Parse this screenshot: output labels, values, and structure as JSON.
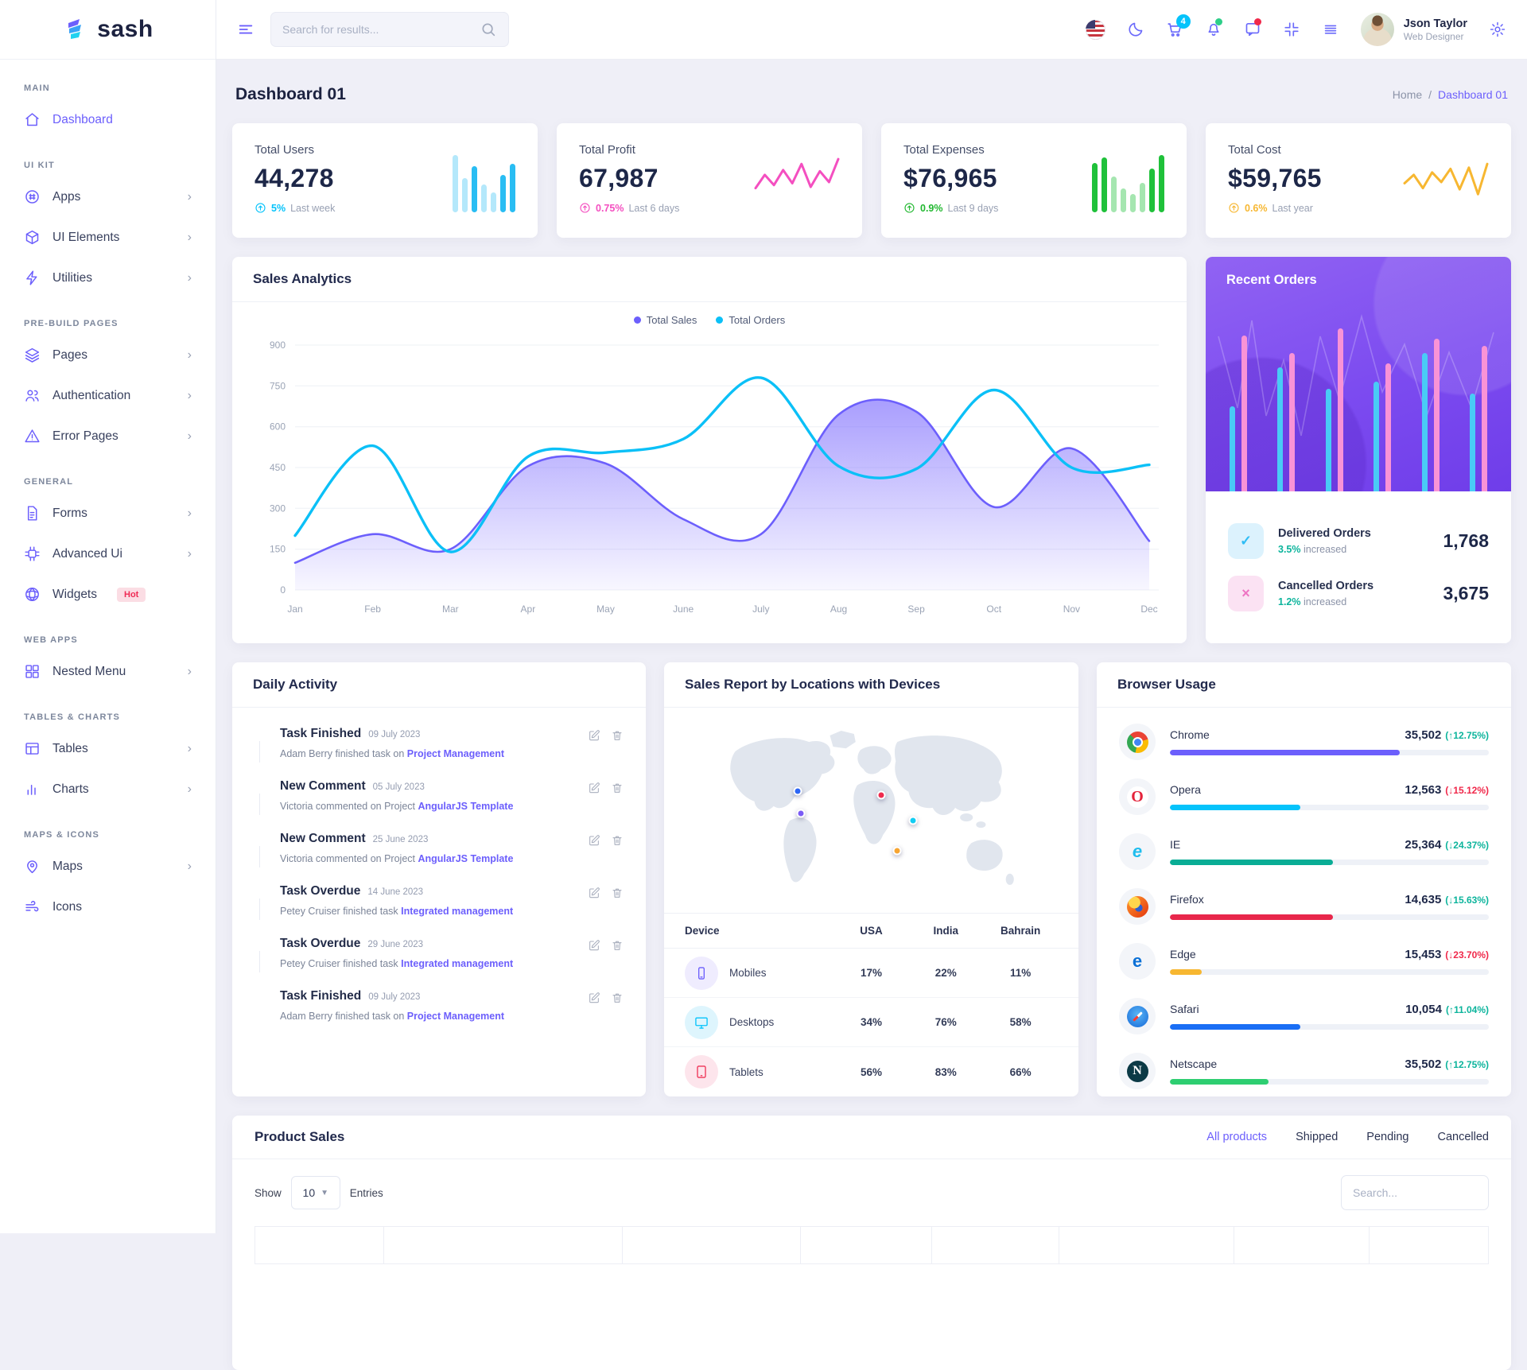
{
  "app": {
    "name": "sash"
  },
  "header": {
    "search_placeholder": "Search for results...",
    "cart_badge": "4",
    "user": {
      "name": "Json Taylor",
      "role": "Web Designer"
    }
  },
  "page": {
    "title": "Dashboard 01",
    "breadcrumb": {
      "home": "Home",
      "separator": "/",
      "current": "Dashboard 01"
    }
  },
  "sidebar": {
    "sections": [
      {
        "heading": "MAIN",
        "items": [
          {
            "label": "Dashboard",
            "icon": "home",
            "active": true,
            "chevron": false
          }
        ]
      },
      {
        "heading": "UI KIT",
        "items": [
          {
            "label": "Apps",
            "icon": "apps",
            "chevron": true
          },
          {
            "label": "UI Elements",
            "icon": "box",
            "chevron": true
          },
          {
            "label": "Utilities",
            "icon": "bolt",
            "chevron": true
          }
        ]
      },
      {
        "heading": "PRE-BUILD PAGES",
        "items": [
          {
            "label": "Pages",
            "icon": "layers",
            "chevron": true
          },
          {
            "label": "Authentication",
            "icon": "users",
            "chevron": true
          },
          {
            "label": "Error Pages",
            "icon": "alert",
            "chevron": true
          }
        ]
      },
      {
        "heading": "GENERAL",
        "items": [
          {
            "label": "Forms",
            "icon": "file",
            "chevron": true
          },
          {
            "label": "Advanced Ui",
            "icon": "chip",
            "chevron": true
          },
          {
            "label": "Widgets",
            "icon": "globe",
            "chevron": false,
            "badge": "Hot"
          }
        ]
      },
      {
        "heading": "WEB APPS",
        "items": [
          {
            "label": "Nested Menu",
            "icon": "grid",
            "chevron": true
          }
        ]
      },
      {
        "heading": "TABLES & CHARTS",
        "items": [
          {
            "label": "Tables",
            "icon": "table",
            "chevron": true
          },
          {
            "label": "Charts",
            "icon": "chart",
            "chevron": true
          }
        ]
      },
      {
        "heading": "MAPS & ICONS",
        "items": [
          {
            "label": "Maps",
            "icon": "pin",
            "chevron": true
          },
          {
            "label": "Icons",
            "icon": "wind",
            "chevron": false
          }
        ]
      }
    ]
  },
  "stats": [
    {
      "title": "Total Users",
      "value": "44,278",
      "pct": "5%",
      "period": "Last week",
      "color": "#05c3fb",
      "spark": {
        "type": "bars",
        "values": [
          92,
          55,
          75,
          45,
          32,
          60,
          78
        ],
        "kinds": [
          "light",
          "light",
          "dark",
          "light",
          "light",
          "dark",
          "dark"
        ],
        "dark": "#29bdf3",
        "light": "rgba(41,189,243,0.35)"
      }
    },
    {
      "title": "Total Profit",
      "value": "67,987",
      "pct": "0.75%",
      "period": "Last 6 days",
      "color": "#f44fc0",
      "spark": {
        "type": "line",
        "values": [
          40,
          62,
          45,
          70,
          48,
          80,
          42,
          68,
          50,
          88
        ],
        "stroke": "#f44fc0"
      }
    },
    {
      "title": "Total Expenses",
      "value": "$76,965",
      "pct": "0.9%",
      "period": "Last 9 days",
      "color": "#21b830",
      "spark": {
        "type": "bars",
        "values": [
          80,
          88,
          58,
          38,
          30,
          48,
          70,
          92
        ],
        "kinds": [
          "dark",
          "dark",
          "light",
          "light",
          "light",
          "light",
          "dark",
          "dark"
        ],
        "dark": "#1fc13a",
        "light": "rgba(31,193,58,0.4)"
      }
    },
    {
      "title": "Total Cost",
      "value": "$59,765",
      "pct": "0.6%",
      "period": "Last year",
      "color": "#f7b731",
      "spark": {
        "type": "line",
        "values": [
          48,
          62,
          40,
          66,
          50,
          72,
          38,
          74,
          30,
          80
        ],
        "stroke": "#f7b731"
      }
    }
  ],
  "sales_analytics": {
    "title": "Sales Analytics",
    "chart_data": {
      "type": "area",
      "categories": [
        "Jan",
        "Feb",
        "Mar",
        "Apr",
        "May",
        "June",
        "July",
        "Aug",
        "Sep",
        "Oct",
        "Nov",
        "Dec"
      ],
      "series": [
        {
          "name": "Total Sales",
          "style": "area",
          "color": "#6c5ffc",
          "values": [
            100,
            205,
            150,
            455,
            465,
            260,
            205,
            645,
            655,
            305,
            520,
            180
          ]
        },
        {
          "name": "Total Orders",
          "style": "line",
          "color": "#0bc0f7",
          "values": [
            200,
            530,
            140,
            490,
            505,
            555,
            780,
            455,
            445,
            735,
            450,
            460
          ]
        }
      ],
      "ylim": [
        0,
        900
      ],
      "yticks": [
        0,
        150,
        300,
        450,
        600,
        750,
        900
      ],
      "legend_position": "top",
      "grid": true
    }
  },
  "recent_orders": {
    "title": "Recent Orders",
    "bars": [
      {
        "cyan": 48,
        "pink": 88
      },
      {
        "cyan": 70,
        "pink": 78
      },
      {
        "cyan": 58,
        "pink": 92
      },
      {
        "cyan": 62,
        "pink": 72
      },
      {
        "cyan": 78,
        "pink": 86
      },
      {
        "cyan": 55,
        "pink": 82
      }
    ],
    "bar_colors": {
      "cyan": "#49cbf6",
      "pink": "#f993d6"
    },
    "rows": [
      {
        "label": "Delivered Orders",
        "pct": "3.5%",
        "note": "increased",
        "value": "1,768",
        "glyph": "✓",
        "style": "delivered"
      },
      {
        "label": "Cancelled Orders",
        "pct": "1.2%",
        "note": "increased",
        "value": "3,675",
        "glyph": "×",
        "style": "cancelled"
      }
    ]
  },
  "daily_activity": {
    "title": "Daily Activity",
    "items": [
      {
        "title": "Task Finished",
        "date": "09 July 2023",
        "desc": "Adam Berry finished task on ",
        "link": "Project Management",
        "dot": "#6c5ffc"
      },
      {
        "title": "New Comment",
        "date": "05 July 2023",
        "desc": "Victoria commented on Project ",
        "link": "AngularJS Template",
        "dot": "#05c3fb"
      },
      {
        "title": "New Comment",
        "date": "25 June 2023",
        "desc": "Victoria commented on Project ",
        "link": "AngularJS Template",
        "dot": "#09ad95"
      },
      {
        "title": "Task Overdue",
        "date": "14 June 2023",
        "desc": "Petey Cruiser finished task ",
        "link": "Integrated management",
        "dot": "#f7b731"
      },
      {
        "title": "Task Overdue",
        "date": "29 June 2023",
        "desc": "Petey Cruiser finished task ",
        "link": "Integrated management",
        "dot": "#ec2d5a"
      },
      {
        "title": "Task Finished",
        "date": "09 July 2023",
        "desc": "Adam Berry finished task on ",
        "link": "Project Management",
        "dot": "#1a6ef5"
      }
    ]
  },
  "sales_report": {
    "title": "Sales Report by Locations with Devices",
    "columns": [
      "Device",
      "USA",
      "India",
      "Bahrain"
    ],
    "rows": [
      {
        "device": "Mobiles",
        "usa": "17%",
        "india": "22%",
        "bahrain": "11%",
        "icon": "phone",
        "fg": "#6c5ffc",
        "bg": "#efecfe"
      },
      {
        "device": "Desktops",
        "usa": "34%",
        "india": "76%",
        "bahrain": "58%",
        "icon": "monitor",
        "fg": "#05c3fb",
        "bg": "#def5fd"
      },
      {
        "device": "Tablets",
        "usa": "56%",
        "india": "83%",
        "bahrain": "66%",
        "icon": "tablet",
        "fg": "#ef3457",
        "bg": "#fde5ec"
      }
    ],
    "markers": [
      {
        "x": 27,
        "y": 38,
        "color": "#2d66f5"
      },
      {
        "x": 28,
        "y": 50,
        "color": "#7b5cf5"
      },
      {
        "x": 53,
        "y": 40,
        "color": "#ef2b4e"
      },
      {
        "x": 63,
        "y": 54,
        "color": "#12cdf3"
      },
      {
        "x": 58,
        "y": 70,
        "color": "#f7a531"
      }
    ]
  },
  "browser_usage": {
    "title": "Browser Usage",
    "items": [
      {
        "name": "Chrome",
        "value": "35,502",
        "arrow": "↑",
        "change": "12.75%",
        "change_color": "#0cb49c",
        "bar_color": "#6c5ffc",
        "bar_pct": 72,
        "icon": "chrome",
        "letter": ""
      },
      {
        "name": "Opera",
        "value": "12,563",
        "arrow": "↓",
        "change": "15.12%",
        "change_color": "#f0284a",
        "bar_color": "#05c3fb",
        "bar_pct": 41,
        "icon": "opera",
        "letter": "O"
      },
      {
        "name": "IE",
        "value": "25,364",
        "arrow": "↓",
        "change": "24.37%",
        "change_color": "#0cb49c",
        "bar_color": "#09ad95",
        "bar_pct": 51,
        "icon": "ie",
        "letter": "e"
      },
      {
        "name": "Firefox",
        "value": "14,635",
        "arrow": "↓",
        "change": "15.63%",
        "change_color": "#0cb49c",
        "bar_color": "#e8274b",
        "bar_pct": 51,
        "icon": "firefox",
        "letter": ""
      },
      {
        "name": "Edge",
        "value": "15,453",
        "arrow": "↓",
        "change": "23.70%",
        "change_color": "#f0284a",
        "bar_color": "#f7b731",
        "bar_pct": 10,
        "icon": "edge",
        "letter": "e"
      },
      {
        "name": "Safari",
        "value": "10,054",
        "arrow": "↑",
        "change": "11.04%",
        "change_color": "#0cb49c",
        "bar_color": "#1a6ef5",
        "bar_pct": 41,
        "icon": "safari",
        "letter": ""
      },
      {
        "name": "Netscape",
        "value": "35,502",
        "arrow": "↑",
        "change": "12.75%",
        "change_color": "#0cb49c",
        "bar_color": "#2ece71",
        "bar_pct": 31,
        "icon": "netscape",
        "letter": "N"
      }
    ]
  },
  "product_sales": {
    "title": "Product Sales",
    "tabs": [
      {
        "label": "All products",
        "active": true
      },
      {
        "label": "Shipped",
        "active": false
      },
      {
        "label": "Pending",
        "active": false
      },
      {
        "label": "Cancelled",
        "active": false
      }
    ],
    "show_label": "Show",
    "entries_value": "10",
    "entries_label": "Entries",
    "search_placeholder": "Search..."
  }
}
